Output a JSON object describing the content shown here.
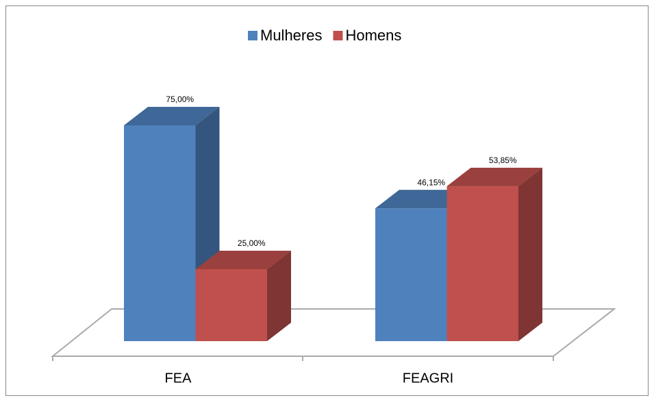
{
  "chart_data": {
    "type": "bar3d",
    "categories": [
      "FEA",
      "FEAGRI"
    ],
    "series": [
      {
        "name": "Mulheres",
        "color": "#4f81bd",
        "values": [
          75,
          46.15
        ],
        "value_labels": [
          "75,00%",
          "46,15%"
        ]
      },
      {
        "name": "Homens",
        "color": "#c0504d",
        "values": [
          25,
          53.85
        ],
        "value_labels": [
          "25,00%",
          "53,85%"
        ]
      }
    ],
    "legend": "top"
  }
}
